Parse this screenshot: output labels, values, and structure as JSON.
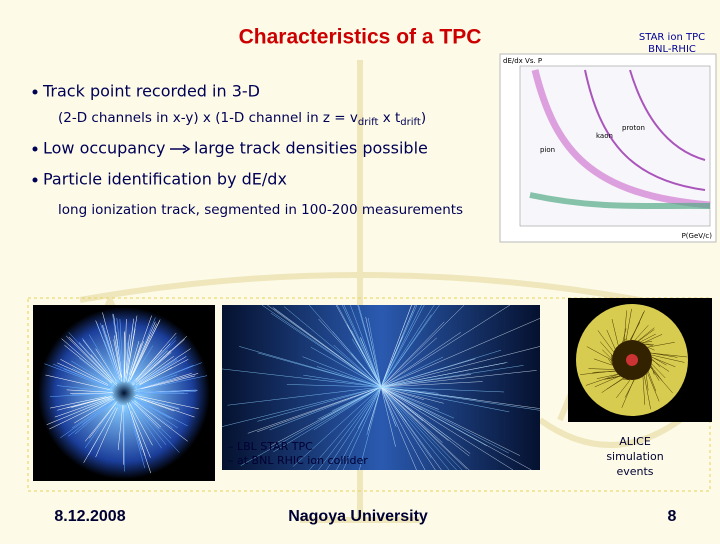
{
  "header": {
    "title": "Characteristics of a TPC",
    "source": [
      "STAR ion TPC",
      "BNL-RHIC"
    ]
  },
  "body": {
    "bullet_1": "Track point recorded in 3-D",
    "detail_1": [
      "(2-D channels in x-y) x (1-D channel in z = v",
      "drift",
      " x t",
      "drift",
      ")"
    ],
    "bullet_2": "Low occupancy",
    "arrow_text": "large track densities possible",
    "bullet_3": "Particle identification by dE/dx",
    "detail_3": "long ionization track, segmented in 100-200 measurements"
  },
  "inset": {
    "title": "dE/dx Vs. P",
    "labels": [
      "pion",
      "kaon",
      "proton"
    ],
    "x_label": "P(GeV/c)"
  },
  "captions": {
    "star": [
      "– LBL STAR TPC",
      "– at BNL RHIC ion collider"
    ],
    "alice": [
      "ALICE",
      "simulation",
      "events"
    ]
  },
  "footer": {
    "date": "8.12.2008",
    "venue": "Nagoya University",
    "page": "8"
  }
}
